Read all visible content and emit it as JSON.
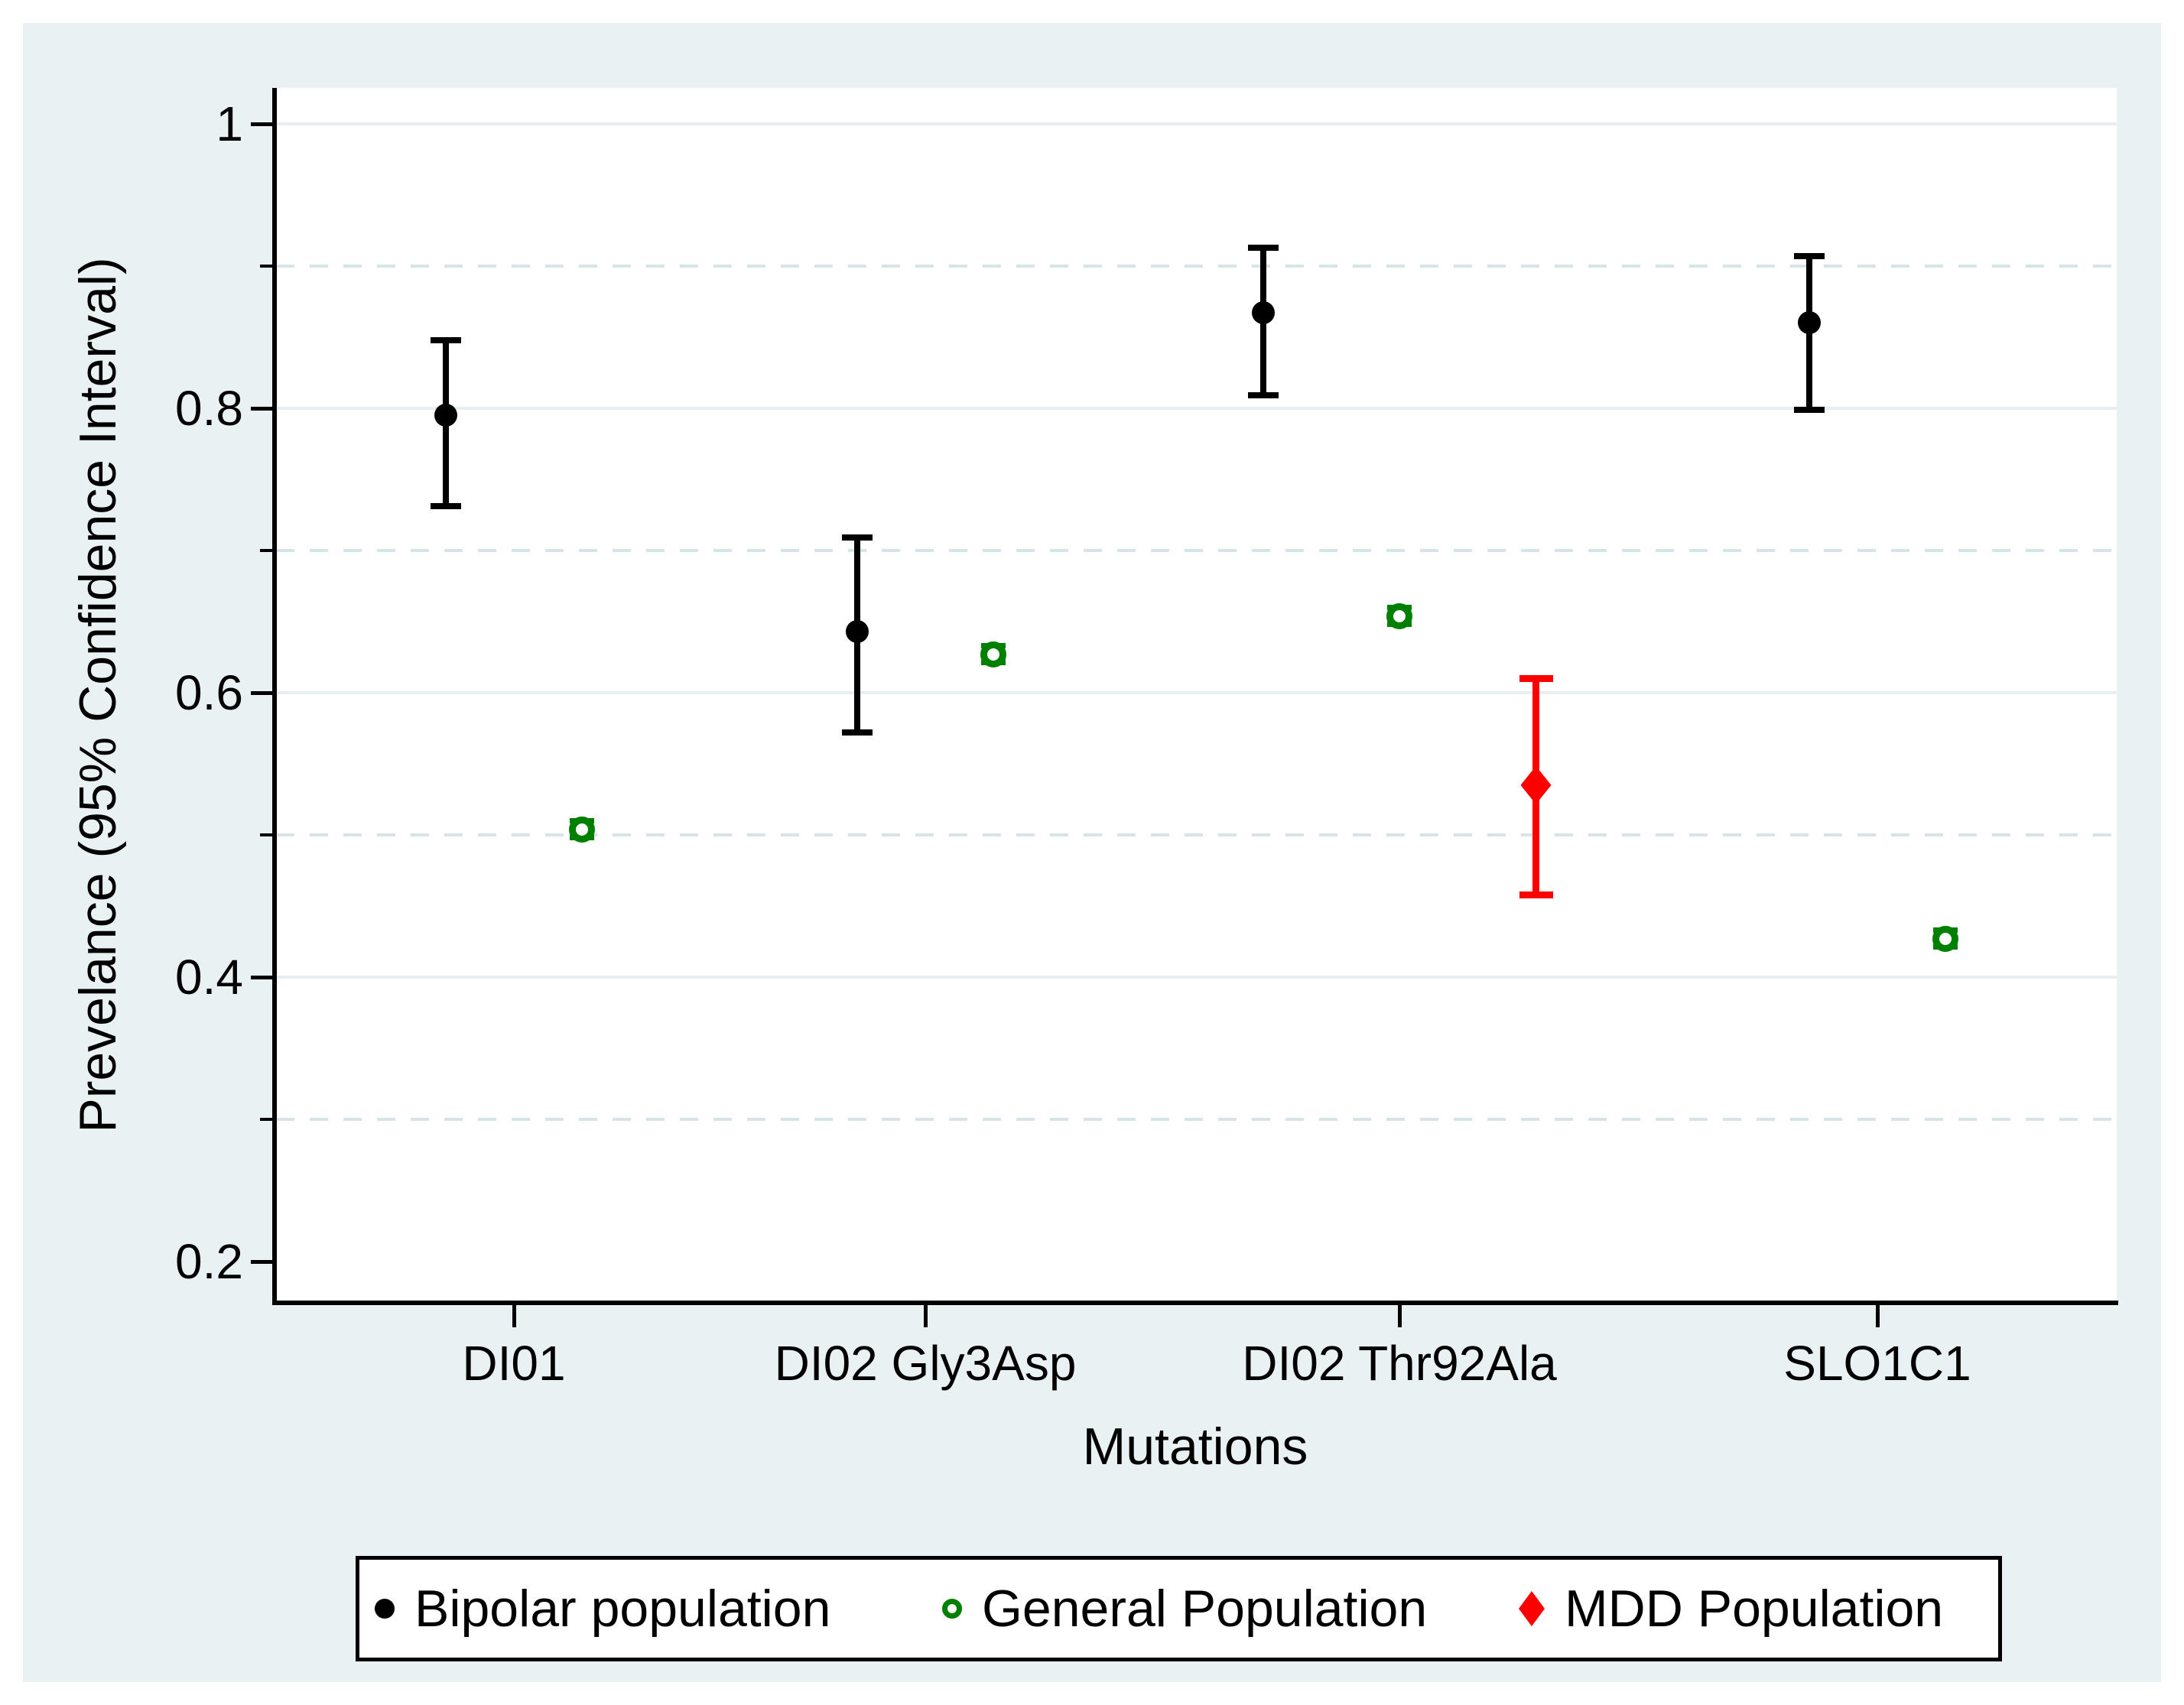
{
  "chart_data": {
    "type": "scatter",
    "title": "",
    "xlabel": "Mutations",
    "ylabel": "Prevelance (95% Confidence Interval)",
    "ylim": [
      0.2,
      1.0
    ],
    "yticks_major": [
      1,
      0.8,
      0.6,
      0.4,
      0.2
    ],
    "ytick_labels": [
      "1",
      "0.8",
      "0.6",
      "0.4",
      "0.2"
    ],
    "yticks_minor": [
      0.9,
      0.7,
      0.5,
      0.3
    ],
    "grid": {
      "solid_at": [
        1,
        0.8,
        0.6,
        0.4
      ],
      "dashed_at": [
        0.9,
        0.7,
        0.5,
        0.3
      ]
    },
    "categories": [
      "DI01",
      "DI02 Gly3Asp",
      "DI02 Thr92Ala",
      "SLO1C1"
    ],
    "legend_position": "bottom",
    "series": [
      {
        "name": "Bipolar population",
        "marker": "filled-circle",
        "color": "#000000",
        "points": [
          {
            "category": "DI01",
            "value": 0.795,
            "ci_low": 0.731,
            "ci_high": 0.848
          },
          {
            "category": "DI02 Gly3Asp",
            "value": 0.643,
            "ci_low": 0.572,
            "ci_high": 0.709
          },
          {
            "category": "DI02 Thr92Ala",
            "value": 0.867,
            "ci_low": 0.809,
            "ci_high": 0.913
          },
          {
            "category": "SLO1C1",
            "value": 0.86,
            "ci_low": 0.799,
            "ci_high": 0.907
          }
        ]
      },
      {
        "name": "General Population",
        "marker": "open-circle",
        "color": "#008000",
        "points": [
          {
            "category": "DI01",
            "value": 0.504,
            "ci_low": 0.498,
            "ci_high": 0.51
          },
          {
            "category": "DI02 Gly3Asp",
            "value": 0.627,
            "ci_low": 0.621,
            "ci_high": 0.633
          },
          {
            "category": "DI02 Thr92Ala",
            "value": 0.654,
            "ci_low": 0.648,
            "ci_high": 0.66
          },
          {
            "category": "SLO1C1",
            "value": 0.427,
            "ci_low": 0.421,
            "ci_high": 0.433
          }
        ]
      },
      {
        "name": "MDD Population",
        "marker": "filled-diamond",
        "color": "#ff0000",
        "points": [
          {
            "category": "DI02 Thr92Ala",
            "value": 0.535,
            "ci_low": 0.458,
            "ci_high": 0.61
          }
        ]
      }
    ]
  },
  "colors": {
    "figure_background": "#eaf1f3",
    "plot_background": "#ffffff",
    "grid_solid": "#e7eef1",
    "grid_dashed": "#d8e3e8",
    "axis": "#000000"
  }
}
